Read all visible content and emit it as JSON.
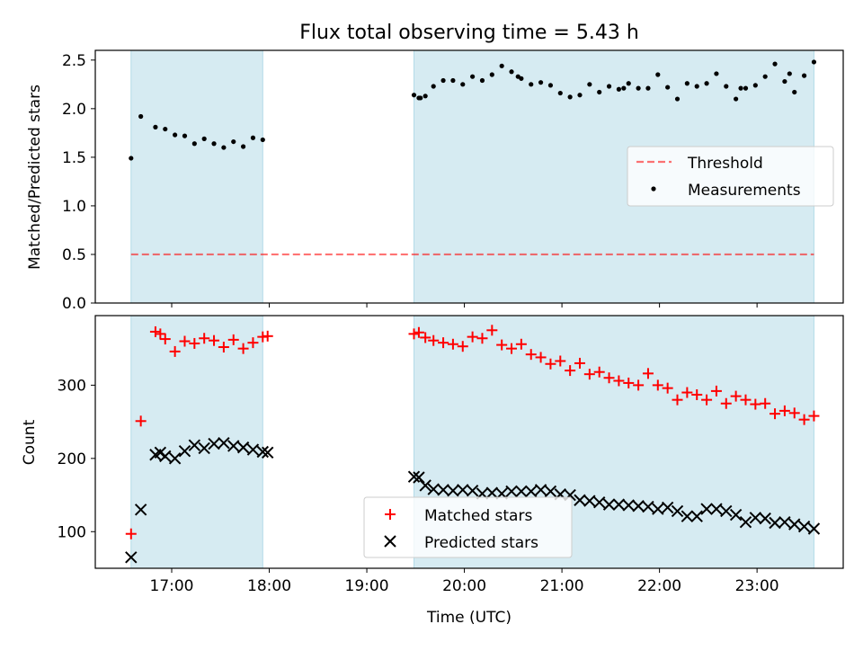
{
  "title": "Flux total observing time = 5.43 h",
  "colors": {
    "shade": "#add8e6",
    "threshold": "#ff0000",
    "measurements": "#000000",
    "matched": "#ff0000",
    "predicted": "#000000"
  },
  "chart_data": [
    {
      "type": "scatter",
      "panel": "top",
      "ylabel": "Matched/Predicted stars",
      "ylim": [
        0,
        2.6
      ],
      "yticks": [
        "0.0",
        "0.5",
        "1.0",
        "1.5",
        "2.0",
        "2.5"
      ],
      "shaded_intervals": [
        [
          "16:35",
          "17:56"
        ],
        [
          "19:29",
          "23:35"
        ]
      ],
      "threshold": 0.5,
      "legend_position": "center-right",
      "legend": [
        "Threshold",
        "Measurements"
      ],
      "series": [
        {
          "name": "Measurements",
          "x": [
            "16:35",
            "16:41",
            "16:50",
            "16:56",
            "17:02",
            "17:08",
            "17:14",
            "17:20",
            "17:26",
            "17:32",
            "17:38",
            "17:44",
            "17:50",
            "17:56",
            "19:29",
            "19:32",
            "19:36",
            "19:41",
            "19:47",
            "19:53",
            "19:59",
            "20:05",
            "20:11",
            "20:17",
            "20:23",
            "20:29",
            "20:35",
            "20:41",
            "20:47",
            "20:53",
            "20:59",
            "21:05",
            "21:11",
            "21:17",
            "21:23",
            "21:29",
            "21:35",
            "21:41",
            "21:47",
            "21:53",
            "21:59",
            "22:05",
            "22:11",
            "22:17",
            "22:23",
            "22:29",
            "22:35",
            "22:41",
            "22:47",
            "22:53",
            "22:59",
            "23:05",
            "23:11",
            "23:17",
            "23:23",
            "23:29",
            "23:35",
            "19:33",
            "20:33",
            "21:38",
            "22:50",
            "23:20"
          ],
          "y": [
            1.49,
            1.92,
            1.81,
            1.79,
            1.73,
            1.72,
            1.64,
            1.69,
            1.64,
            1.6,
            1.66,
            1.61,
            1.7,
            1.68,
            2.14,
            2.11,
            2.13,
            2.23,
            2.29,
            2.29,
            2.25,
            2.33,
            2.29,
            2.35,
            2.44,
            2.38,
            2.31,
            2.25,
            2.27,
            2.24,
            2.16,
            2.12,
            2.14,
            2.25,
            2.17,
            2.23,
            2.2,
            2.26,
            2.21,
            2.21,
            2.35,
            2.22,
            2.1,
            2.26,
            2.23,
            2.26,
            2.36,
            2.23,
            2.1,
            2.21,
            2.24,
            2.33,
            2.46,
            2.28,
            2.17,
            2.34,
            2.48,
            2.11,
            2.33,
            2.21,
            2.21,
            2.36
          ],
          "marker": "dot"
        }
      ]
    },
    {
      "type": "scatter",
      "panel": "bottom",
      "xlabel": "Time (UTC)",
      "ylabel": "Count",
      "ylim": [
        50,
        395
      ],
      "yticks": [
        "100",
        "200",
        "300"
      ],
      "xlim": [
        "16:13",
        "23:53"
      ],
      "xticks": [
        "17:00",
        "18:00",
        "19:00",
        "20:00",
        "21:00",
        "22:00",
        "23:00"
      ],
      "shaded_intervals": [
        [
          "16:35",
          "17:56"
        ],
        [
          "19:29",
          "23:35"
        ]
      ],
      "legend_position": "lower-center",
      "legend": [
        "Matched stars",
        "Predicted stars"
      ],
      "series": [
        {
          "name": "Matched stars",
          "marker": "plus",
          "x": [
            "16:35",
            "16:41",
            "16:50",
            "16:53",
            "16:56",
            "17:02",
            "17:08",
            "17:14",
            "17:20",
            "17:26",
            "17:32",
            "17:38",
            "17:44",
            "17:50",
            "17:56",
            "17:59",
            "19:29",
            "19:32",
            "19:36",
            "19:41",
            "19:47",
            "19:53",
            "19:59",
            "20:05",
            "20:11",
            "20:17",
            "20:23",
            "20:29",
            "20:35",
            "20:41",
            "20:47",
            "20:53",
            "20:59",
            "21:05",
            "21:11",
            "21:17",
            "21:23",
            "21:29",
            "21:35",
            "21:41",
            "21:47",
            "21:53",
            "21:59",
            "22:05",
            "22:11",
            "22:17",
            "22:23",
            "22:29",
            "22:35",
            "22:41",
            "22:47",
            "22:53",
            "22:59",
            "23:05",
            "23:11",
            "23:17",
            "23:23",
            "23:29",
            "23:35"
          ],
          "y": [
            97,
            251,
            373,
            370,
            363,
            346,
            360,
            357,
            364,
            361,
            352,
            362,
            350,
            358,
            366,
            367,
            370,
            372,
            365,
            361,
            358,
            356,
            353,
            366,
            364,
            375,
            355,
            350,
            356,
            342,
            338,
            329,
            333,
            320,
            330,
            315,
            318,
            310,
            306,
            303,
            300,
            316,
            300,
            296,
            280,
            290,
            287,
            280,
            292,
            275,
            285,
            280,
            274,
            275,
            261,
            265,
            262,
            253,
            258
          ]
        },
        {
          "name": "Predicted stars",
          "marker": "x",
          "x": [
            "16:35",
            "16:41",
            "16:50",
            "16:53",
            "16:56",
            "17:02",
            "17:08",
            "17:14",
            "17:20",
            "17:26",
            "17:32",
            "17:38",
            "17:44",
            "17:50",
            "17:56",
            "17:59",
            "19:29",
            "19:32",
            "19:36",
            "19:41",
            "19:47",
            "19:53",
            "19:59",
            "20:05",
            "20:11",
            "20:17",
            "20:23",
            "20:29",
            "20:35",
            "20:41",
            "20:47",
            "20:53",
            "20:59",
            "21:05",
            "21:11",
            "21:17",
            "21:23",
            "21:29",
            "21:35",
            "21:41",
            "21:47",
            "21:53",
            "21:59",
            "22:05",
            "22:11",
            "22:17",
            "22:23",
            "22:29",
            "22:35",
            "22:41",
            "22:47",
            "22:53",
            "22:59",
            "23:05",
            "23:11",
            "23:17",
            "23:23",
            "23:29",
            "23:35"
          ],
          "y": [
            65,
            130,
            205,
            208,
            203,
            200,
            210,
            218,
            214,
            220,
            221,
            217,
            215,
            212,
            209,
            208,
            175,
            174,
            163,
            158,
            157,
            156,
            157,
            156,
            152,
            153,
            152,
            155,
            155,
            155,
            157,
            155,
            151,
            150,
            143,
            142,
            140,
            137,
            137,
            136,
            135,
            134,
            131,
            133,
            128,
            121,
            121,
            131,
            131,
            128,
            123,
            113,
            119,
            118,
            112,
            113,
            110,
            107,
            104
          ]
        }
      ]
    }
  ]
}
